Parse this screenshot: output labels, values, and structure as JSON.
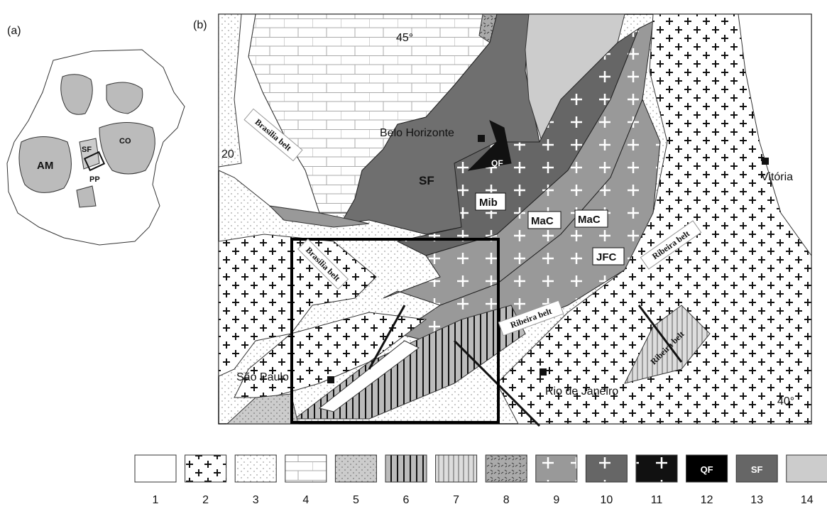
{
  "panel_a": {
    "label": "(a)",
    "regions": [
      "AM",
      "SF",
      "CO",
      "PP"
    ]
  },
  "panel_b": {
    "label": "(b)",
    "coords": [
      "45°",
      "20",
      "40°"
    ],
    "belts": [
      "Brasilia belt",
      "Brasilia belt",
      "Ribeira belt",
      "Ribeira belt",
      "Ribeira belt"
    ],
    "cities": [
      "Belo Horizonte",
      "Vitória",
      "São Paulo",
      "Rio de Janeiro"
    ],
    "units": [
      "SF",
      "QF",
      "Mib",
      "MaC",
      "MaC",
      "JFC"
    ]
  },
  "legend": {
    "items": [
      {
        "number": 1
      },
      {
        "number": 2
      },
      {
        "number": 3
      },
      {
        "number": 4
      },
      {
        "number": 5
      },
      {
        "number": 6
      },
      {
        "number": 7
      },
      {
        "number": 8
      },
      {
        "number": 9
      },
      {
        "number": 10
      },
      {
        "number": 11
      },
      {
        "number": 12,
        "label": "QF"
      },
      {
        "number": 13,
        "label": "SF"
      },
      {
        "number": 14
      }
    ]
  }
}
